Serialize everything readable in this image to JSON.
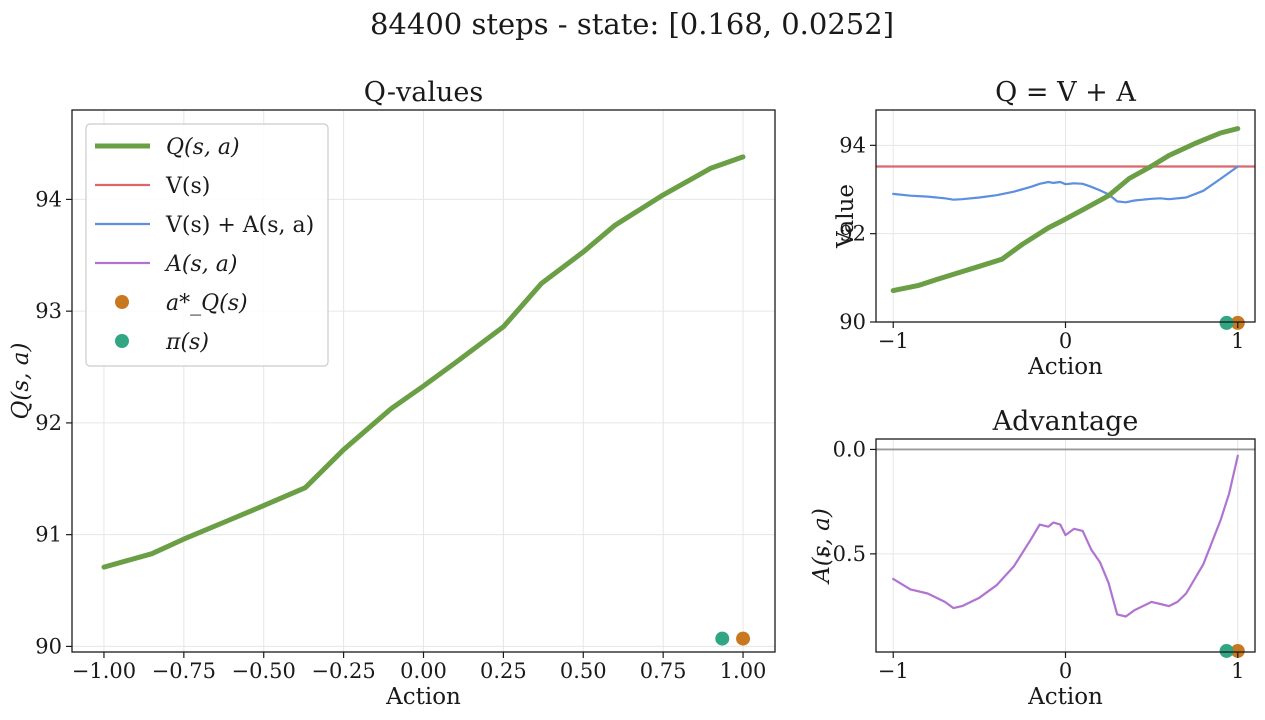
{
  "suptitle": "84400 steps - state: [0.168, 0.0252]",
  "colors": {
    "q": "#6a9f45",
    "v": "#d9686a",
    "vpa": "#5b8fe0",
    "a": "#b074d0",
    "aq": "#c8781e",
    "pi": "#32a585",
    "zero": "#9a9a9a"
  },
  "chart_data": [
    {
      "type": "line",
      "title": "Q-values",
      "xlabel": "Action",
      "ylabel": "Q(s, a)",
      "xlim": [
        -1.1,
        1.1
      ],
      "ylim": [
        89.95,
        94.8
      ],
      "xticks": [
        -1.0,
        -0.75,
        -0.5,
        -0.25,
        0.0,
        0.25,
        0.5,
        0.75,
        1.0
      ],
      "xtick_labels": [
        "−1.00",
        "−0.75",
        "−0.50",
        "−0.25",
        "0.00",
        "0.25",
        "0.50",
        "0.75",
        "1.00"
      ],
      "yticks": [
        90,
        91,
        92,
        93,
        94
      ],
      "ytick_labels": [
        "90",
        "91",
        "92",
        "93",
        "94"
      ],
      "grid": true,
      "legend_position": "upper-left",
      "series": [
        {
          "name": "Q(s, a)",
          "kind": "line",
          "color": "q",
          "x": [
            -1.0,
            -0.85,
            -0.75,
            -0.6,
            -0.5,
            -0.37,
            -0.25,
            -0.1,
            0.0,
            0.1,
            0.25,
            0.37,
            0.5,
            0.6,
            0.75,
            0.9,
            1.0
          ],
          "y": [
            90.71,
            90.83,
            90.96,
            91.14,
            91.26,
            91.42,
            91.76,
            92.13,
            92.33,
            92.54,
            92.86,
            93.25,
            93.53,
            93.77,
            94.04,
            94.28,
            94.38
          ]
        },
        {
          "name": "V(s)",
          "kind": "legend-only",
          "color": "v"
        },
        {
          "name": "V(s) + A(s, a)",
          "kind": "legend-only",
          "color": "vpa"
        },
        {
          "name": "A(s, a)",
          "kind": "legend-only",
          "color": "a"
        },
        {
          "name": "a*_Q(s)",
          "kind": "point",
          "color": "aq",
          "x": [
            1.0
          ],
          "y": [
            90.07
          ]
        },
        {
          "name": "π(s)",
          "kind": "point",
          "color": "pi",
          "x": [
            0.935
          ],
          "y": [
            90.07
          ]
        }
      ]
    },
    {
      "type": "line",
      "title": "Q = V + A",
      "xlabel": "Action",
      "ylabel": "Value",
      "xlim": [
        -1.1,
        1.1
      ],
      "ylim": [
        90.0,
        94.8
      ],
      "xticks": [
        -1,
        0,
        1
      ],
      "xtick_labels": [
        "−1",
        "0",
        "1"
      ],
      "yticks": [
        90,
        92,
        94
      ],
      "ytick_labels": [
        "90",
        "92",
        "94"
      ],
      "grid": true,
      "series": [
        {
          "name": "V(s)",
          "kind": "hline",
          "color": "v",
          "y": 93.52
        },
        {
          "name": "V(s) + A(s, a)",
          "kind": "line",
          "color": "vpa",
          "x": [
            -1.0,
            -0.9,
            -0.8,
            -0.7,
            -0.65,
            -0.6,
            -0.5,
            -0.4,
            -0.3,
            -0.2,
            -0.15,
            -0.1,
            -0.07,
            -0.03,
            0.0,
            0.05,
            0.1,
            0.15,
            0.2,
            0.25,
            0.3,
            0.35,
            0.4,
            0.5,
            0.55,
            0.6,
            0.7,
            0.8,
            0.9,
            1.0
          ],
          "y": [
            92.9,
            92.86,
            92.84,
            92.8,
            92.77,
            92.78,
            92.82,
            92.87,
            92.95,
            93.06,
            93.13,
            93.17,
            93.15,
            93.17,
            93.12,
            93.14,
            93.13,
            93.06,
            92.98,
            92.89,
            92.73,
            92.71,
            92.75,
            92.79,
            92.8,
            92.78,
            92.82,
            92.97,
            93.24,
            93.52
          ]
        },
        {
          "name": "Q(s, a)",
          "kind": "line",
          "color": "q",
          "x": [
            -1.0,
            -0.85,
            -0.75,
            -0.6,
            -0.5,
            -0.37,
            -0.25,
            -0.1,
            0.0,
            0.1,
            0.25,
            0.37,
            0.5,
            0.6,
            0.75,
            0.9,
            1.0
          ],
          "y": [
            90.71,
            90.83,
            90.96,
            91.14,
            91.26,
            91.42,
            91.76,
            92.13,
            92.33,
            92.54,
            92.86,
            93.25,
            93.53,
            93.77,
            94.04,
            94.28,
            94.38
          ]
        },
        {
          "name": "a*_Q(s)",
          "kind": "point",
          "color": "aq",
          "x": [
            1.0
          ],
          "y": [
            89.98
          ]
        },
        {
          "name": "π(s)",
          "kind": "point",
          "color": "pi",
          "x": [
            0.935
          ],
          "y": [
            89.98
          ]
        }
      ]
    },
    {
      "type": "line",
      "title": "Advantage",
      "xlabel": "Action",
      "ylabel": "A(s, a)",
      "xlim": [
        -1.1,
        1.1
      ],
      "ylim": [
        -0.97,
        0.05
      ],
      "xticks": [
        -1,
        0,
        1
      ],
      "xtick_labels": [
        "−1",
        "0",
        "1"
      ],
      "yticks": [
        0.0,
        -0.5
      ],
      "ytick_labels": [
        "0.0",
        "−0.5"
      ],
      "grid": true,
      "series": [
        {
          "name": "zero",
          "kind": "hline",
          "color": "zero",
          "y": 0.0
        },
        {
          "name": "A(s, a)",
          "kind": "line",
          "color": "a",
          "x": [
            -1.0,
            -0.9,
            -0.8,
            -0.7,
            -0.65,
            -0.6,
            -0.5,
            -0.4,
            -0.3,
            -0.2,
            -0.15,
            -0.1,
            -0.07,
            -0.03,
            0.0,
            0.05,
            0.1,
            0.15,
            0.2,
            0.25,
            0.3,
            0.35,
            0.4,
            0.5,
            0.55,
            0.6,
            0.65,
            0.7,
            0.8,
            0.9,
            0.95,
            1.0
          ],
          "y": [
            -0.62,
            -0.67,
            -0.69,
            -0.73,
            -0.76,
            -0.75,
            -0.71,
            -0.65,
            -0.56,
            -0.43,
            -0.36,
            -0.37,
            -0.35,
            -0.36,
            -0.41,
            -0.38,
            -0.39,
            -0.48,
            -0.54,
            -0.64,
            -0.79,
            -0.8,
            -0.77,
            -0.73,
            -0.74,
            -0.75,
            -0.73,
            -0.69,
            -0.55,
            -0.34,
            -0.21,
            -0.03
          ]
        },
        {
          "name": "a*_Q(s)",
          "kind": "point",
          "color": "aq",
          "x": [
            1.0
          ],
          "y": [
            -0.965
          ]
        },
        {
          "name": "π(s)",
          "kind": "point",
          "color": "pi",
          "x": [
            0.935
          ],
          "y": [
            -0.965
          ]
        }
      ]
    }
  ]
}
